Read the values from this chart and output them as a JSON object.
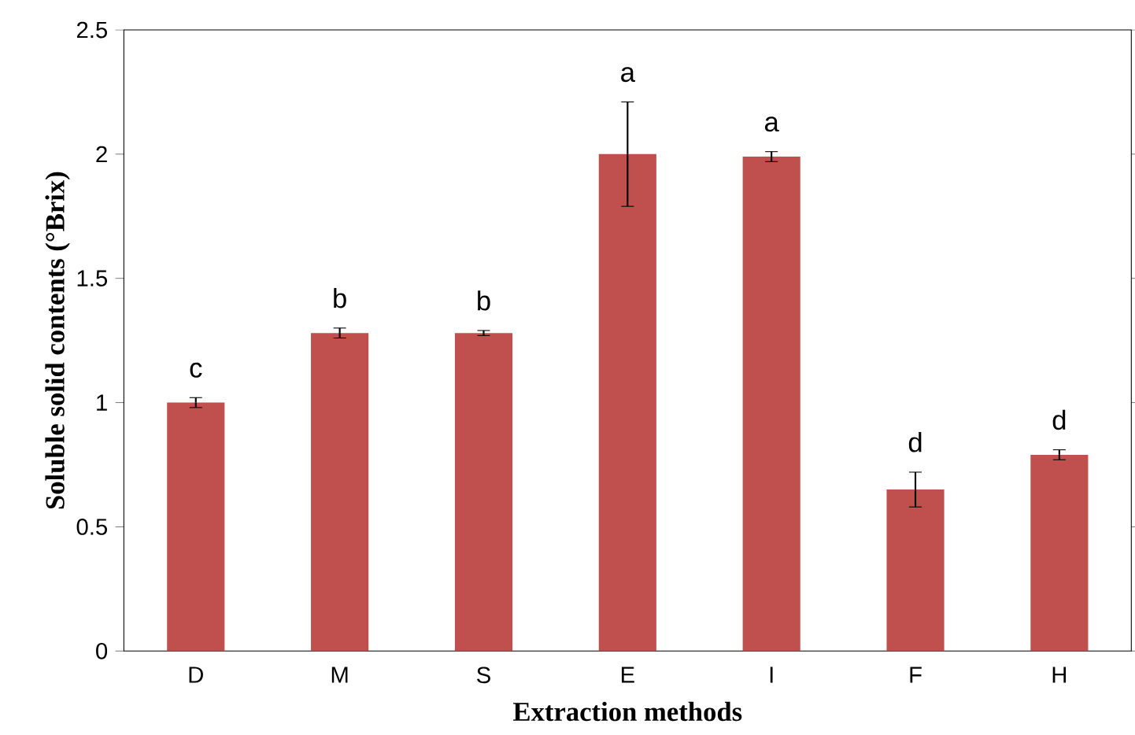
{
  "chart_data": {
    "type": "bar",
    "xlabel": "Extraction  methods",
    "ylabel": "Soluble solid contents (°Brix)",
    "categories": [
      "D",
      "M",
      "S",
      "E",
      "I",
      "F",
      "H"
    ],
    "values": [
      1.0,
      1.28,
      1.28,
      2.0,
      1.99,
      0.65,
      0.79
    ],
    "errors": [
      0.02,
      0.02,
      0.01,
      0.21,
      0.02,
      0.07,
      0.02
    ],
    "color": "#c0504d",
    "ylim": [
      0,
      2.5
    ],
    "yticks": [
      0,
      0.5,
      1,
      1.5,
      2,
      2.5
    ],
    "grid": false,
    "annotations": [
      "c",
      "b",
      "b",
      "a",
      "a",
      "d",
      "d"
    ]
  }
}
